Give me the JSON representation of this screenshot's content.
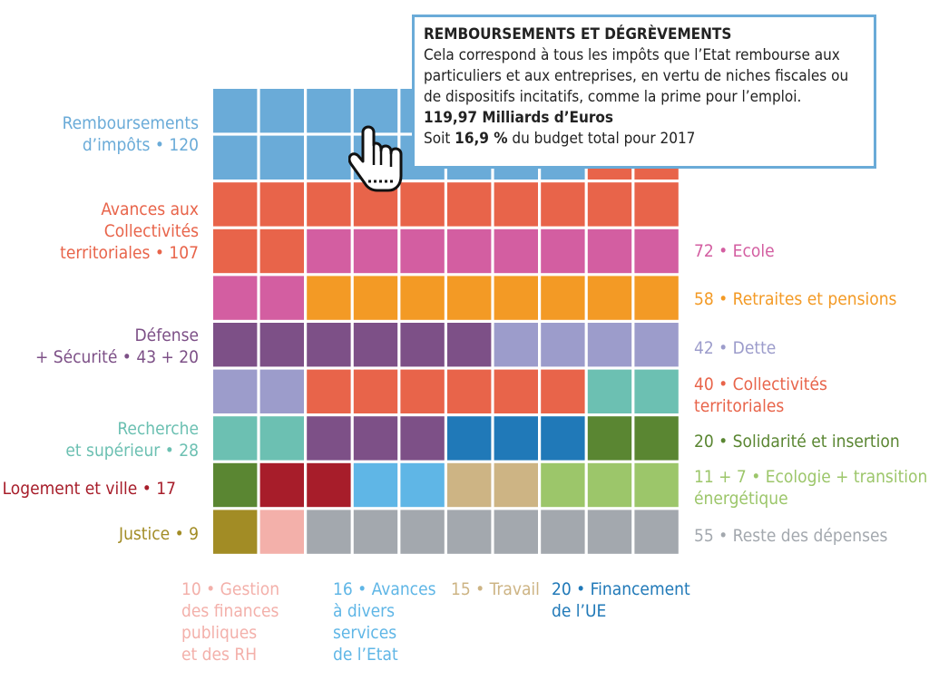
{
  "colors": {
    "remboursements": "#6aabd8",
    "avances_collectivites": "#e8644a",
    "ecole": "#d35ea1",
    "retraites": "#f39a25",
    "defense": "#7d5087",
    "dette": "#9c9ccb",
    "collectivites": "#e8644a",
    "recherche": "#6cc0b2",
    "solidarite": "#5a8632",
    "logement": "#a71d2a",
    "ecologie": "#9cc66a",
    "justice": "#a28c25",
    "gestion": "#f3b0aa",
    "avances_services": "#5fb6e6",
    "travail": "#cdb484",
    "ue": "#2079b8",
    "reste": "#a3a8ae"
  },
  "chart_data": {
    "type": "waffle",
    "unit_per_cell": "~7 Md€",
    "columns": 10,
    "rows": 10,
    "cells": [
      [
        "remboursements",
        "remboursements",
        "remboursements",
        "remboursements",
        "remboursements",
        "remboursements",
        "remboursements",
        "remboursements",
        "remboursements",
        "remboursements"
      ],
      [
        "remboursements",
        "remboursements",
        "remboursements",
        "remboursements",
        "remboursements",
        "remboursements",
        "remboursements",
        "remboursements",
        "avances_collectivites",
        "avances_collectivites"
      ],
      [
        "avances_collectivites",
        "avances_collectivites",
        "avances_collectivites",
        "avances_collectivites",
        "avances_collectivites",
        "avances_collectivites",
        "avances_collectivites",
        "avances_collectivites",
        "avances_collectivites",
        "avances_collectivites"
      ],
      [
        "avances_collectivites",
        "avances_collectivites",
        "ecole",
        "ecole",
        "ecole",
        "ecole",
        "ecole",
        "ecole",
        "ecole",
        "ecole"
      ],
      [
        "ecole",
        "ecole",
        "retraites",
        "retraites",
        "retraites",
        "retraites",
        "retraites",
        "retraites",
        "retraites",
        "retraites"
      ],
      [
        "defense",
        "defense",
        "defense",
        "defense",
        "defense",
        "defense",
        "dette",
        "dette",
        "dette",
        "dette"
      ],
      [
        "dette",
        "dette",
        "collectivites",
        "collectivites",
        "collectivites",
        "collectivites",
        "collectivites",
        "collectivites",
        "recherche",
        "recherche"
      ],
      [
        "recherche",
        "recherche",
        "defense",
        "defense",
        "defense",
        "ue",
        "ue",
        "ue",
        "solidarite",
        "solidarite"
      ],
      [
        "solidarite",
        "logement",
        "logement",
        "avances_services",
        "avances_services",
        "travail",
        "travail",
        "ecologie",
        "ecologie",
        "ecologie"
      ],
      [
        "justice",
        "gestion",
        "reste",
        "reste",
        "reste",
        "reste",
        "reste",
        "reste",
        "reste",
        "reste"
      ]
    ]
  },
  "labels_left": {
    "remboursements": [
      "Remboursements",
      "d’impôts • 120"
    ],
    "avances_collectivites": [
      "Avances aux",
      "Collectivités",
      "territoriales • 107"
    ],
    "defense": [
      "Défense",
      "+ Sécurité • 43 + 20"
    ],
    "recherche": [
      "Recherche",
      "et supérieur • 28"
    ],
    "logement": [
      "Logement et ville • 17"
    ],
    "justice": [
      "Justice • 9"
    ]
  },
  "labels_right": {
    "ecole": [
      "72 • Ecole"
    ],
    "retraites": [
      "58 • Retraites et pensions"
    ],
    "dette": [
      "42 • Dette"
    ],
    "collectivites": [
      "40 • Collectivités",
      "territoriales"
    ],
    "solidarite": [
      "20 • Solidarité et insertion"
    ],
    "ecologie": [
      "11 + 7 • Ecologie + transition",
      "énergétique"
    ],
    "reste": [
      "55 • Reste des dépenses"
    ]
  },
  "labels_bottom": {
    "gestion": [
      "10 • Gestion",
      "des finances",
      "publiques",
      "et des RH"
    ],
    "avances_services": [
      "16 • Avances",
      "à divers",
      "services",
      "de l’Etat"
    ],
    "travail": [
      "15 • Travail"
    ],
    "ue": [
      "20 • Financement",
      "de l’UE"
    ]
  },
  "tooltip": {
    "title": "REMBOURSEMENTS ET DÉGRÈVEMENTS",
    "line1": "Cela correspond à tous les impôts que l’Etat rembourse aux",
    "line2": "particuliers et aux entreprises, en vertu de niches fiscales ou",
    "line3": "de dispositifs incitatifs, comme la prime pour l’emploi.",
    "amount": "119,97 Milliards d’Euros",
    "share_prefix": "Soit ",
    "share_value": "16,9 %",
    "share_suffix": " du budget total pour 2017"
  }
}
